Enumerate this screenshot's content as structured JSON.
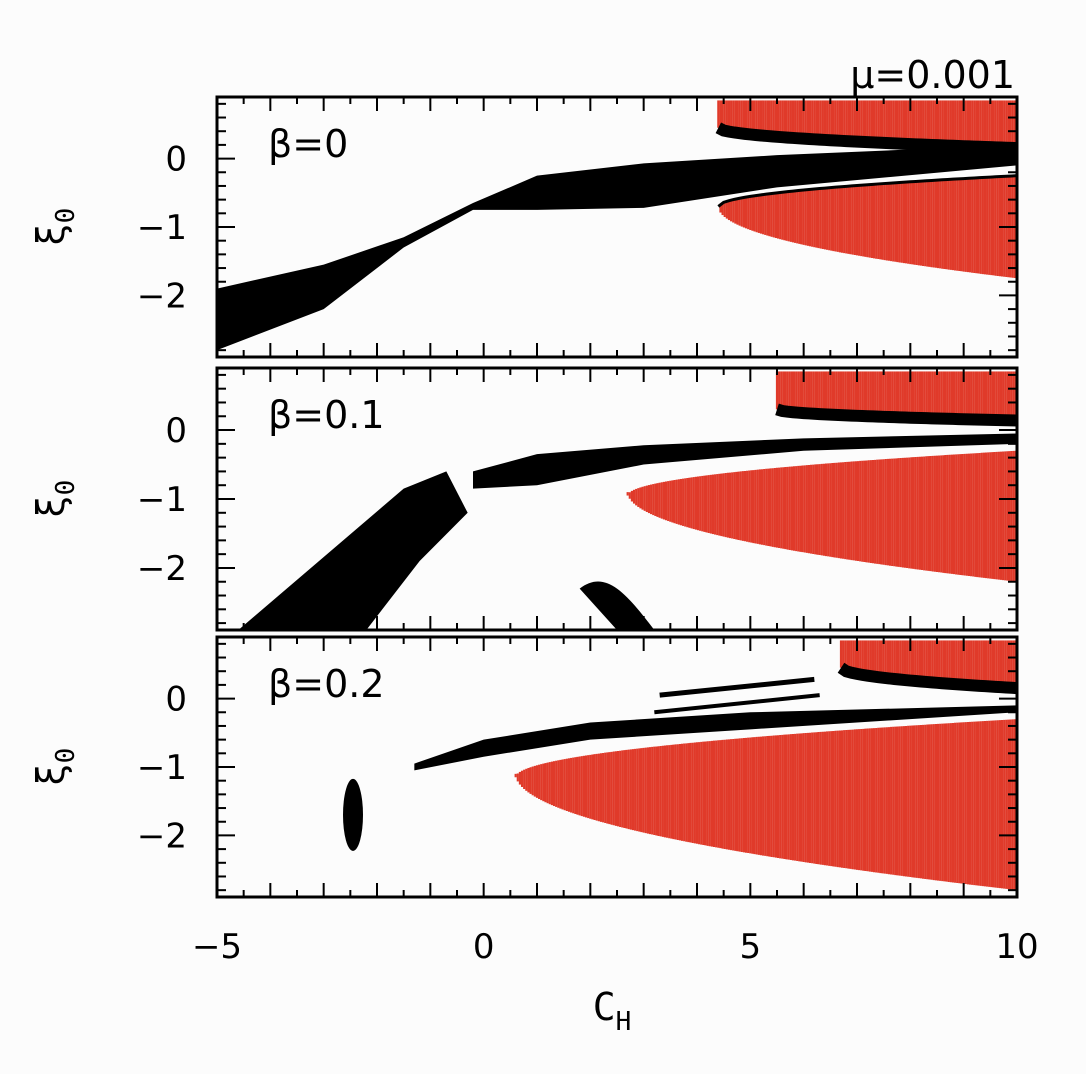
{
  "chart_data": {
    "type": "scatter",
    "top_label": "μ=0.001",
    "xlabel": "C",
    "xlabel_sub": "H",
    "ylabel": "ξ",
    "ylabel_sub": "0",
    "xlim": [
      -5,
      10
    ],
    "ylim": [
      -2.9,
      0.9
    ],
    "xticks": [
      -5,
      0,
      5,
      10
    ],
    "yticks": [
      0,
      -1,
      -2
    ],
    "colors": {
      "red_region": "#e03a2a",
      "black_region": "#000000"
    },
    "panels": [
      {
        "label": "β=0",
        "red_region": {
          "x_start": 4.4,
          "x_end": 10,
          "upper": {
            "vertex_y": 0.45,
            "y_top": 0.85
          },
          "lower": {
            "vertex_y": -0.7,
            "y_at_end": -1.75
          }
        },
        "black_band": [
          [
            -5,
            -1.9,
            -2.8
          ],
          [
            -3,
            -1.55,
            -2.2
          ],
          [
            -1.5,
            -1.15,
            -1.3
          ],
          [
            -0.2,
            -0.65,
            -0.75
          ],
          [
            1,
            -0.25,
            -0.75
          ],
          [
            3,
            -0.07,
            -0.72
          ],
          [
            5.5,
            0.05,
            -0.42
          ],
          [
            10,
            0.2,
            -0.1
          ]
        ]
      },
      {
        "label": "β=0.1",
        "red_region": {
          "x_start": 5.5,
          "x_end": 10,
          "upper": {
            "vertex_y": 0.3,
            "y_top": 0.85
          },
          "x_start_lower": 2.7,
          "lower": {
            "vertex_y": -0.9,
            "y_at_end": -2.2
          }
        },
        "black_band": [
          [
            -0.2,
            -0.6,
            -0.85
          ],
          [
            1,
            -0.35,
            -0.8
          ],
          [
            3,
            -0.22,
            -0.5
          ],
          [
            6,
            -0.12,
            -0.3
          ],
          [
            10,
            -0.05,
            -0.2
          ]
        ]
      },
      {
        "label": "β=0.2",
        "red_region": {
          "x_start": 6.7,
          "x_end": 10,
          "upper": {
            "vertex_y": 0.45,
            "y_top": 0.85
          },
          "x_start_lower": 0.6,
          "lower": {
            "vertex_y": -1.1,
            "y_at_end": -2.8
          }
        },
        "black_band": [
          [
            -1.3,
            -0.95,
            -1.05
          ],
          [
            0,
            -0.6,
            -0.85
          ],
          [
            2,
            -0.35,
            -0.6
          ],
          [
            5,
            -0.2,
            -0.45
          ],
          [
            10,
            -0.1,
            -0.2
          ]
        ]
      }
    ]
  }
}
